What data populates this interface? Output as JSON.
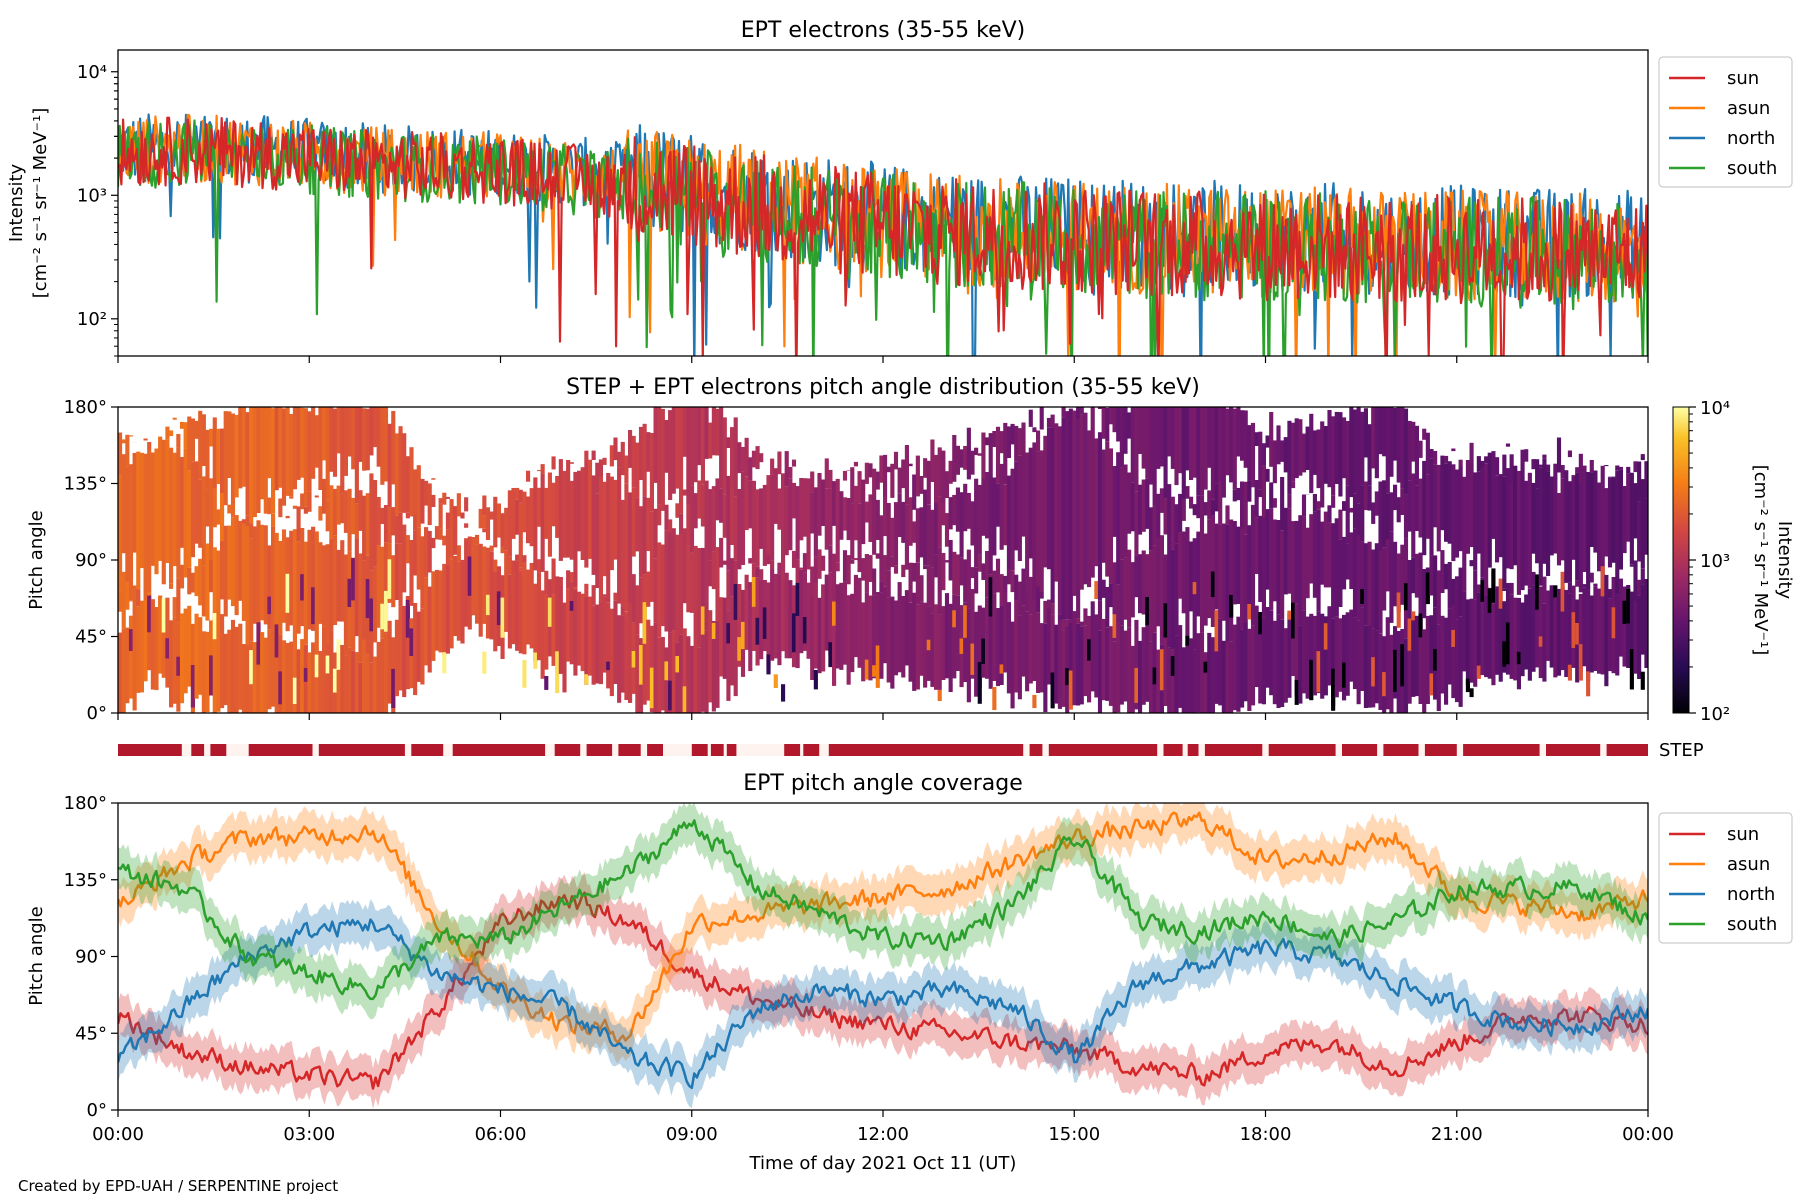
{
  "colors": {
    "sun": "#d62728",
    "asun": "#ff7f0e",
    "north": "#1f77b4",
    "south": "#2ca02c",
    "step_bar": "#b2182b"
  },
  "footer": {
    "credit": "Created by EPD-UAH / SERPENTINE project"
  },
  "chart_data": [
    {
      "id": "intensity",
      "type": "line",
      "title": "EPT electrons (35-55 keV)",
      "ylabel_line1": "Intensity",
      "ylabel_line2": "[cm⁻² s⁻¹ sr⁻¹ MeV⁻¹]",
      "yscale": "log",
      "ylim": [
        50,
        15000
      ],
      "yticks": [
        {
          "value": 100,
          "label": "10²"
        },
        {
          "value": 1000,
          "label": "10³"
        },
        {
          "value": 10000,
          "label": "10⁴"
        }
      ],
      "xlim_hours": [
        0,
        24
      ],
      "legend": {
        "placement": "outside-right-top"
      },
      "x_hours": [
        0,
        1,
        2,
        3,
        4,
        5,
        6,
        7,
        8,
        9,
        10,
        11,
        12,
        13,
        14,
        15,
        16,
        17,
        18,
        19,
        20,
        21,
        22,
        23,
        24
      ],
      "series": [
        {
          "name": "sun",
          "color_key": "sun",
          "values": [
            2200,
            2300,
            2200,
            2000,
            1800,
            1700,
            1600,
            1400,
            1200,
            1000,
            800,
            650,
            560,
            500,
            470,
            440,
            420,
            400,
            390,
            380,
            370,
            360,
            350,
            340,
            330
          ]
        },
        {
          "name": "asun",
          "color_key": "asun",
          "values": [
            2300,
            2400,
            2300,
            2100,
            1900,
            1800,
            1700,
            1500,
            1300,
            1100,
            900,
            720,
            600,
            540,
            500,
            470,
            450,
            430,
            420,
            410,
            400,
            390,
            380,
            370,
            360
          ]
        },
        {
          "name": "north",
          "color_key": "north",
          "values": [
            2400,
            2500,
            2400,
            2200,
            2000,
            1900,
            1800,
            1600,
            1400,
            1200,
            950,
            760,
            650,
            580,
            540,
            510,
            490,
            470,
            460,
            450,
            440,
            430,
            420,
            410,
            400
          ]
        },
        {
          "name": "south",
          "color_key": "south",
          "values": [
            2100,
            2200,
            2100,
            1950,
            1750,
            1650,
            1550,
            1350,
            1150,
            950,
            780,
            630,
            540,
            490,
            460,
            430,
            410,
            395,
            385,
            375,
            365,
            355,
            345,
            335,
            325
          ]
        }
      ]
    },
    {
      "id": "pad",
      "type": "heatmap",
      "title": "STEP + EPT electrons pitch angle distribution (35-55 keV)",
      "ylabel": "Pitch angle",
      "ylim": [
        0,
        180
      ],
      "yticks": [
        "0°",
        "45°",
        "90°",
        "135°",
        "180°"
      ],
      "xlim_hours": [
        0,
        24
      ],
      "colorbar": {
        "label_line1": "Intensity",
        "label_line2": "[cm⁻² s⁻¹ sr⁻¹ MeV⁻¹]",
        "scale": "log",
        "range": [
          100,
          10000
        ],
        "ticks": [
          "10²",
          "10³",
          "10⁴"
        ],
        "colormap": "inferno"
      },
      "intensity_hourly": [
        2300,
        2400,
        2300,
        2100,
        1900,
        1800,
        1700,
        1500,
        1300,
        1100,
        900,
        720,
        600,
        540,
        500,
        470,
        450,
        430,
        420,
        410,
        400,
        390,
        380,
        370,
        360
      ]
    },
    {
      "id": "step-coverage",
      "type": "bar",
      "label": "STEP",
      "gaps_hours": [
        [
          1.0,
          1.15
        ],
        [
          1.35,
          1.45
        ],
        [
          1.7,
          2.05
        ],
        [
          3.05,
          3.15
        ],
        [
          4.5,
          4.6
        ],
        [
          5.1,
          5.25
        ],
        [
          6.7,
          6.85
        ],
        [
          7.25,
          7.35
        ],
        [
          7.75,
          7.85
        ],
        [
          8.2,
          8.3
        ],
        [
          8.55,
          9.0
        ],
        [
          9.25,
          9.3
        ],
        [
          9.5,
          9.55
        ],
        [
          9.7,
          10.45
        ],
        [
          10.7,
          10.75
        ],
        [
          11.0,
          11.15
        ],
        [
          14.2,
          14.3
        ],
        [
          14.5,
          14.6
        ],
        [
          16.3,
          16.4
        ],
        [
          16.7,
          16.78
        ],
        [
          16.95,
          17.05
        ],
        [
          17.95,
          18.05
        ],
        [
          19.1,
          19.2
        ],
        [
          19.75,
          19.85
        ],
        [
          20.4,
          20.5
        ],
        [
          21.0,
          21.1
        ],
        [
          22.3,
          22.4
        ],
        [
          23.25,
          23.35
        ]
      ]
    },
    {
      "id": "coverage",
      "type": "line",
      "title": "EPT pitch angle coverage",
      "ylabel": "Pitch angle",
      "xlabel": "Time of day 2021 Oct 11 (UT)",
      "ylim": [
        0,
        180
      ],
      "yticks": [
        "0°",
        "45°",
        "90°",
        "135°",
        "180°"
      ],
      "xlim_hours": [
        0,
        24
      ],
      "xticks": [
        "00:00",
        "03:00",
        "06:00",
        "09:00",
        "12:00",
        "15:00",
        "18:00",
        "21:00",
        "00:00"
      ],
      "legend": {
        "placement": "outside-right-top"
      },
      "band_halfwidth_deg": 12,
      "x_hours": [
        0,
        1,
        2,
        3,
        4,
        5,
        6,
        7,
        8,
        9,
        10,
        11,
        12,
        13,
        14,
        15,
        16,
        17,
        18,
        19,
        20,
        21,
        22,
        23,
        24
      ],
      "series": [
        {
          "name": "sun",
          "color_key": "sun",
          "values": [
            55,
            35,
            25,
            20,
            15,
            60,
            110,
            125,
            110,
            80,
            65,
            55,
            50,
            45,
            40,
            35,
            25,
            20,
            35,
            40,
            25,
            40,
            55,
            55,
            50
          ]
        },
        {
          "name": "asun",
          "color_key": "asun",
          "values": [
            120,
            145,
            160,
            160,
            165,
            110,
            70,
            50,
            45,
            110,
            115,
            120,
            125,
            130,
            145,
            160,
            165,
            170,
            145,
            150,
            160,
            125,
            120,
            115,
            125
          ]
        },
        {
          "name": "north",
          "color_key": "north",
          "values": [
            30,
            60,
            90,
            105,
            110,
            80,
            70,
            60,
            30,
            20,
            60,
            70,
            65,
            70,
            60,
            30,
            75,
            85,
            95,
            90,
            75,
            60,
            50,
            50,
            60
          ]
        },
        {
          "name": "south",
          "color_key": "south",
          "values": [
            140,
            130,
            90,
            80,
            70,
            100,
            100,
            120,
            140,
            170,
            130,
            115,
            100,
            100,
            120,
            160,
            110,
            105,
            115,
            100,
            110,
            130,
            130,
            130,
            110
          ]
        }
      ]
    }
  ]
}
